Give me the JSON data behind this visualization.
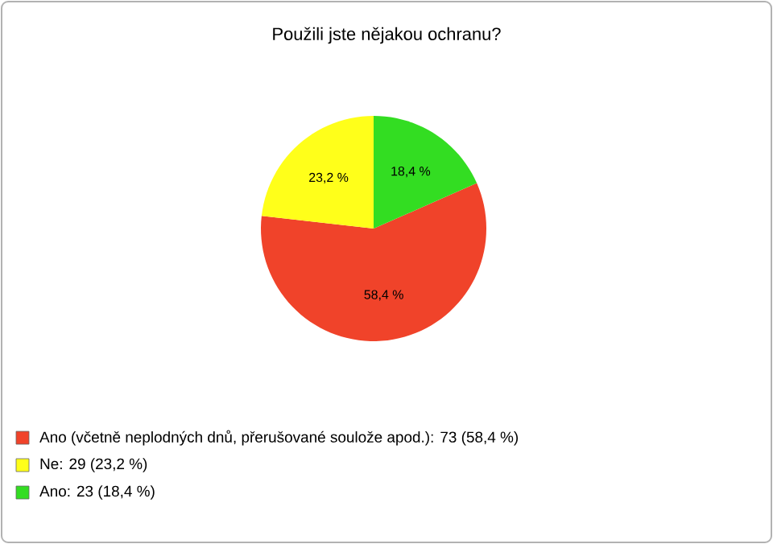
{
  "chart_data": {
    "type": "pie",
    "title": "Použili jste nějakou ochranu?",
    "categories": [
      "Ano (včetně neplodných dnů, přerušované soulože apod.): 73 (58,4 %)",
      "Ne: 29 (23,2 %)",
      "Ano: 23 (18,4 %)"
    ],
    "values": [
      58.4,
      23.2,
      18.4
    ],
    "value_labels": [
      "58,4 %",
      "23,2 %",
      "18,4 %"
    ],
    "colors": [
      "#f0432a",
      "#ffff1a",
      "#33dd22"
    ],
    "legend": "bottom left"
  }
}
